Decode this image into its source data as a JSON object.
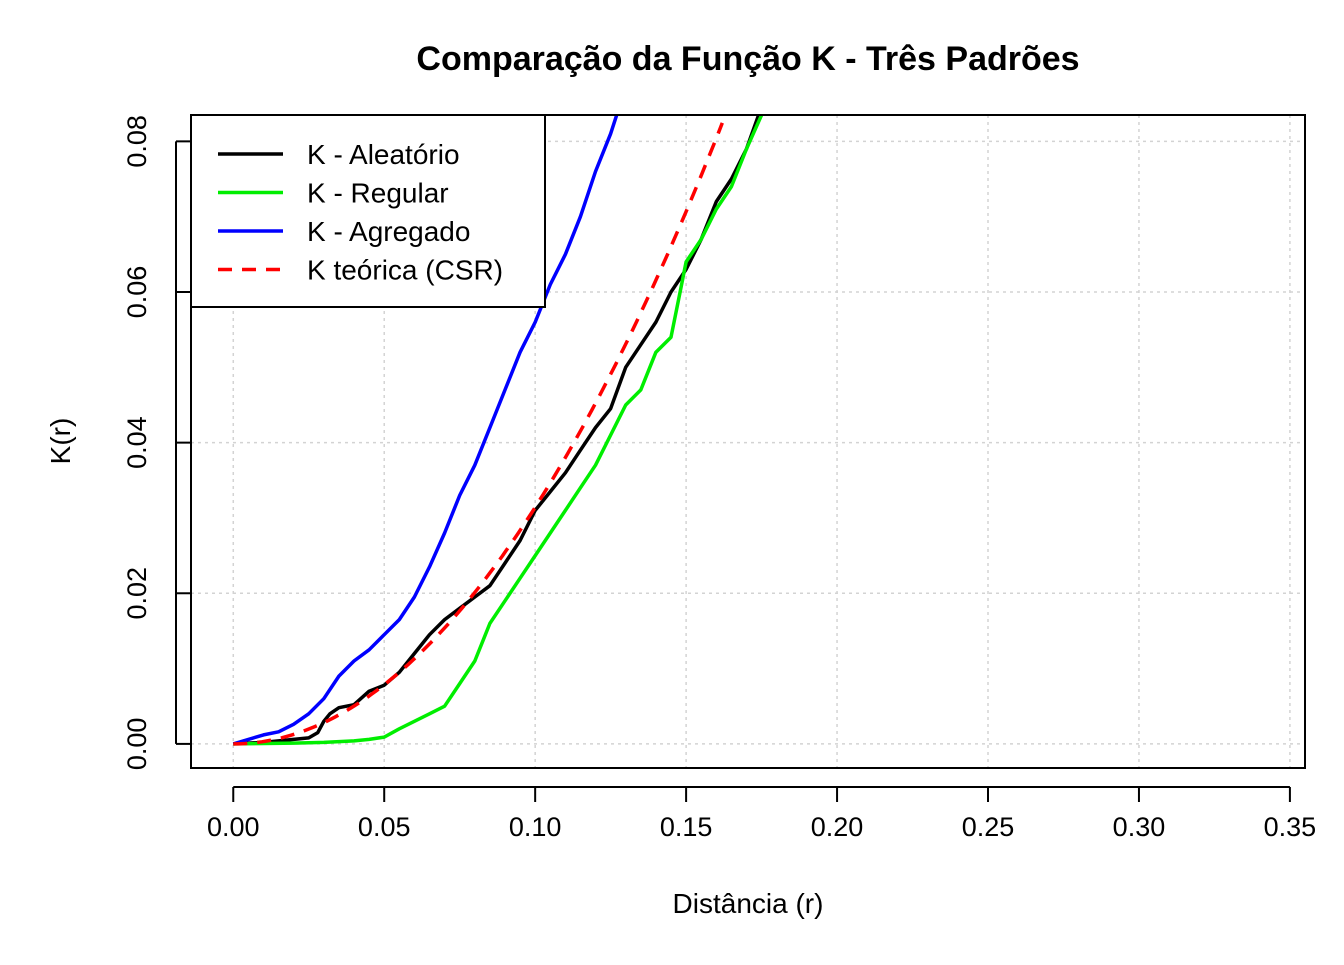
{
  "chart_data": {
    "type": "line",
    "title": "Comparação da Função K - Três Padrões",
    "xlabel": "Distância (r)",
    "ylabel": "K(r)",
    "xlim": [
      -0.014,
      0.355
    ],
    "ylim": [
      -0.0032,
      0.0835
    ],
    "xticks": [
      0.0,
      0.05,
      0.1,
      0.15,
      0.2,
      0.25,
      0.3,
      0.35
    ],
    "xtick_labels": [
      "0.00",
      "0.05",
      "0.10",
      "0.15",
      "0.20",
      "0.25",
      "0.30",
      "0.35"
    ],
    "yticks": [
      0.0,
      0.02,
      0.04,
      0.06,
      0.08
    ],
    "ytick_labels": [
      "0.00",
      "0.02",
      "0.04",
      "0.06",
      "0.08"
    ],
    "grid": true,
    "legend_position": "top-left",
    "series": [
      {
        "name": "K - Aleatório",
        "color": "#000000",
        "style": "solid",
        "x": [
          0,
          0.005,
          0.01,
          0.015,
          0.02,
          0.025,
          0.028,
          0.03,
          0.032,
          0.035,
          0.04,
          0.045,
          0.05,
          0.055,
          0.06,
          0.065,
          0.07,
          0.075,
          0.08,
          0.085,
          0.09,
          0.095,
          0.1,
          0.105,
          0.11,
          0.115,
          0.12,
          0.125,
          0.13,
          0.135,
          0.14,
          0.145,
          0.15,
          0.155,
          0.16,
          0.165,
          0.17,
          0.174
        ],
        "y": [
          0,
          0.0001,
          0.0002,
          0.0004,
          0.0006,
          0.0008,
          0.0015,
          0.003,
          0.004,
          0.0048,
          0.0052,
          0.007,
          0.0078,
          0.0095,
          0.012,
          0.0145,
          0.0165,
          0.018,
          0.0195,
          0.021,
          0.024,
          0.027,
          0.031,
          0.0335,
          0.036,
          0.039,
          0.042,
          0.0445,
          0.05,
          0.053,
          0.056,
          0.06,
          0.063,
          0.067,
          0.072,
          0.075,
          0.079,
          0.0835
        ]
      },
      {
        "name": "K - Regular",
        "color": "#00ee00",
        "style": "solid",
        "x": [
          0,
          0.01,
          0.02,
          0.03,
          0.04,
          0.045,
          0.05,
          0.055,
          0.06,
          0.065,
          0.07,
          0.075,
          0.08,
          0.085,
          0.09,
          0.095,
          0.1,
          0.105,
          0.11,
          0.115,
          0.12,
          0.125,
          0.13,
          0.135,
          0.14,
          0.145,
          0.148,
          0.15,
          0.155,
          0.16,
          0.165,
          0.17,
          0.175
        ],
        "y": [
          0,
          5e-05,
          0.0001,
          0.0002,
          0.0004,
          0.0006,
          0.0009,
          0.002,
          0.003,
          0.004,
          0.005,
          0.008,
          0.011,
          0.016,
          0.019,
          0.022,
          0.025,
          0.028,
          0.031,
          0.034,
          0.037,
          0.041,
          0.045,
          0.047,
          0.052,
          0.054,
          0.06,
          0.064,
          0.067,
          0.071,
          0.074,
          0.079,
          0.0835
        ]
      },
      {
        "name": "K - Agregado",
        "color": "#0000ff",
        "style": "solid",
        "x": [
          0,
          0.005,
          0.01,
          0.015,
          0.02,
          0.025,
          0.03,
          0.035,
          0.04,
          0.045,
          0.05,
          0.055,
          0.06,
          0.065,
          0.07,
          0.075,
          0.08,
          0.085,
          0.09,
          0.095,
          0.1,
          0.105,
          0.11,
          0.115,
          0.12,
          0.125,
          0.127
        ],
        "y": [
          0,
          0.0006,
          0.0012,
          0.0016,
          0.0026,
          0.004,
          0.006,
          0.009,
          0.011,
          0.0125,
          0.0145,
          0.0165,
          0.0195,
          0.0235,
          0.028,
          0.033,
          0.037,
          0.042,
          0.047,
          0.052,
          0.056,
          0.061,
          0.065,
          0.07,
          0.076,
          0.081,
          0.0835
        ]
      },
      {
        "name": "K teórica (CSR)",
        "color": "#ff0000",
        "style": "dashed",
        "fn": "pi*r^2",
        "xmax": 0.162
      }
    ]
  }
}
